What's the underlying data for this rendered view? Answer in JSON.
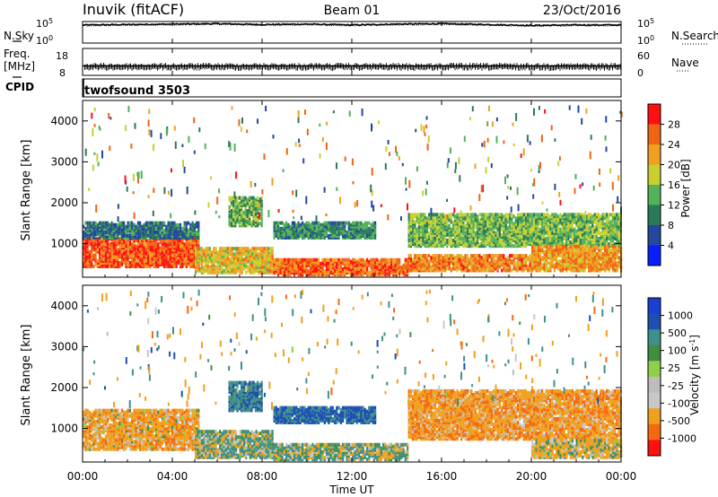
{
  "header": {
    "station": "Inuvik (fitACF)",
    "beam": "Beam 01",
    "date": "23/Oct/2016"
  },
  "top_panels": {
    "nsky_label": "N.Sky",
    "nsky_ticks": [
      "10^5",
      "10^0"
    ],
    "nsearch_label": "N.Search",
    "nsearch_ticks": [
      "10^5",
      "10^0"
    ],
    "freq_label_1": "Freq.",
    "freq_label_2": "[MHz]",
    "freq_ticks": [
      "18",
      "8"
    ],
    "nave_label": "Nave",
    "nave_ticks": [
      "60",
      "0"
    ],
    "cpid_label": "CPID",
    "cpid_text": "twofsound 3503"
  },
  "colors": {
    "power_scale": [
      "#0a1fff",
      "#24489e",
      "#2a7a5a",
      "#53b15a",
      "#c8d030",
      "#f0a020",
      "#f06414",
      "#ff1010"
    ],
    "velocity_scale": [
      "#ff1010",
      "#f5680f",
      "#f0a01c",
      "#c8c8c8",
      "#bdbdbd",
      "#8ed04a",
      "#3f8f3f",
      "#3f8f8a",
      "#1b4fb0",
      "#1b3fd0"
    ],
    "velocity_dominant": [
      "#f08a1c",
      "#3f8f5a",
      "#8ed04a",
      "#c8c8c8",
      "#2a55b0"
    ]
  },
  "chart_data": [
    {
      "type": "line",
      "name": "nsky-nsearch",
      "xlim": [
        "00:00",
        "24:00"
      ],
      "series": [
        {
          "name": "N.Sky",
          "x": [
            0,
            2,
            4,
            6,
            8,
            10,
            12,
            14,
            16,
            18,
            20,
            22,
            24
          ],
          "values": [
            4.2,
            4.3,
            4.4,
            4.5,
            4.3,
            4.4,
            4.2,
            4.4,
            4.5,
            4.3,
            4.1,
            4.2,
            4.2
          ]
        },
        {
          "name": "N.Search",
          "x": [
            0,
            2,
            4,
            6,
            8,
            10,
            12,
            14,
            16,
            18,
            20,
            22,
            24
          ],
          "values": [
            4.0,
            4.1,
            4.2,
            4.3,
            4.1,
            4.2,
            4.0,
            4.2,
            4.3,
            4.1,
            3.9,
            4.0,
            4.0
          ]
        }
      ]
    },
    {
      "type": "line",
      "name": "freq-nave",
      "xlim": [
        "00:00",
        "24:00"
      ],
      "series": [
        {
          "name": "Freq. [MHz]",
          "x": [
            0,
            6,
            12,
            18,
            24
          ],
          "values": [
            11.5,
            11.5,
            11.5,
            11.5,
            11.5
          ]
        },
        {
          "name": "Nave",
          "x": [
            0,
            6,
            12,
            18,
            24
          ],
          "values": [
            19,
            19,
            19,
            19,
            19
          ]
        }
      ]
    },
    {
      "type": "heatmap",
      "name": "power",
      "xlabel": "Time UT",
      "ylabel": "Slant Range [km]",
      "colorbar_label": "Power [dB]",
      "xticks": [
        "00:00",
        "04:00",
        "08:00",
        "12:00",
        "16:00",
        "20:00",
        "00:00"
      ],
      "yticks": [
        "1000",
        "2000",
        "3000",
        "4000"
      ],
      "colorbar_ticks": [
        "4",
        "8",
        "12",
        "16",
        "20",
        "24",
        "28"
      ],
      "xlim": [
        0,
        24
      ],
      "ylim": [
        180,
        4500
      ],
      "clim": [
        0,
        32
      ],
      "regions": [
        {
          "t0": 0.0,
          "t1": 5.2,
          "r0": 400,
          "r1": 1100,
          "value": 27
        },
        {
          "t0": 0.0,
          "t1": 5.2,
          "r0": 1100,
          "r1": 1500,
          "value": 9
        },
        {
          "t0": 5.0,
          "t1": 8.5,
          "r0": 250,
          "r1": 850,
          "value": 20
        },
        {
          "t0": 6.5,
          "t1": 8.0,
          "r0": 1400,
          "r1": 2100,
          "value": 14
        },
        {
          "t0": 8.5,
          "t1": 14.5,
          "r0": 200,
          "r1": 600,
          "value": 26
        },
        {
          "t0": 8.5,
          "t1": 13.0,
          "r0": 1100,
          "r1": 1500,
          "value": 11
        },
        {
          "t0": 14.5,
          "t1": 20.0,
          "r0": 300,
          "r1": 700,
          "value": 24
        },
        {
          "t0": 14.5,
          "t1": 24.0,
          "r0": 900,
          "r1": 1700,
          "value": 15
        },
        {
          "t0": 20.0,
          "t1": 24.0,
          "r0": 300,
          "r1": 900,
          "value": 23
        }
      ]
    },
    {
      "type": "heatmap",
      "name": "velocity",
      "xlabel": "Time UT",
      "ylabel": "Slant Range [km]",
      "colorbar_label": "Velocity [m s^-1]",
      "xticks": [
        "00:00",
        "04:00",
        "08:00",
        "12:00",
        "16:00",
        "20:00",
        "00:00"
      ],
      "yticks": [
        "1000",
        "2000",
        "3000",
        "4000"
      ],
      "colorbar_ticks": [
        "1000",
        "500",
        "100",
        "25",
        "-25",
        "-100",
        "-500",
        "-1000"
      ],
      "xlim": [
        0,
        24
      ],
      "ylim": [
        180,
        4500
      ],
      "regions": [
        {
          "t0": 0.0,
          "t1": 5.2,
          "r0": 450,
          "r1": 1400,
          "value": -300
        },
        {
          "t0": 5.0,
          "t1": 8.5,
          "r0": 250,
          "r1": 900,
          "value": 80
        },
        {
          "t0": 6.5,
          "t1": 8.0,
          "r0": 1400,
          "r1": 2100,
          "value": 400
        },
        {
          "t0": 8.5,
          "t1": 14.5,
          "r0": 200,
          "r1": 600,
          "value": 60
        },
        {
          "t0": 8.5,
          "t1": 13.0,
          "r0": 1100,
          "r1": 1500,
          "value": 600
        },
        {
          "t0": 14.5,
          "t1": 24.0,
          "r0": 700,
          "r1": 1900,
          "value": -350
        },
        {
          "t0": 20.0,
          "t1": 24.0,
          "r0": 250,
          "r1": 700,
          "value": -150
        }
      ]
    }
  ]
}
